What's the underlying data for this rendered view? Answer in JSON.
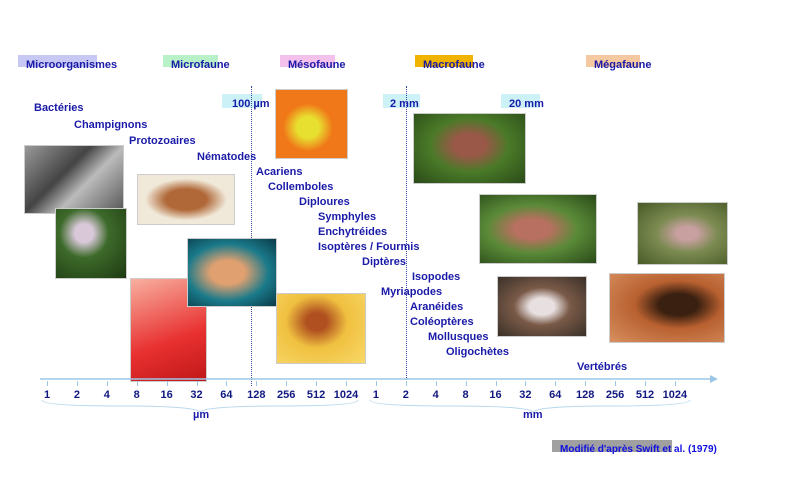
{
  "categories": [
    {
      "label": "Microorganismes",
      "color": "#c8c8f4"
    },
    {
      "label": "Microfaune",
      "color": "#b8f0c8"
    },
    {
      "label": "Mésofaune",
      "color": "#f4c0ec"
    },
    {
      "label": "Macrofaune",
      "color": "#f0b400"
    },
    {
      "label": "Mégafaune",
      "color": "#f4c8a0"
    }
  ],
  "thresholds": [
    "100 µm",
    "2 mm",
    "20 mm"
  ],
  "taxa": [
    "Bactéries",
    "Champignons",
    "Protozoaires",
    "Nématodes",
    "Acariens",
    "Collemboles",
    "Diploures",
    "Symphyles",
    "Enchytréides",
    "Isoptères / Fourmis",
    "Diptères",
    "Isopodes",
    "Myriapodes",
    "Aranéides",
    "Coléoptères",
    "Mollusques",
    "Oligochètes",
    "Vertébrés"
  ],
  "axis": {
    "um_ticks": [
      "1",
      "2",
      "4",
      "8",
      "16",
      "32",
      "64",
      "128",
      "256",
      "512",
      "1024"
    ],
    "mm_ticks": [
      "1",
      "2",
      "4",
      "8",
      "16",
      "32",
      "64",
      "128",
      "256",
      "512",
      "1024"
    ],
    "um_label": "µm",
    "mm_label": "mm"
  },
  "credit": "Modifié d'après Swift et al. (1979)"
}
